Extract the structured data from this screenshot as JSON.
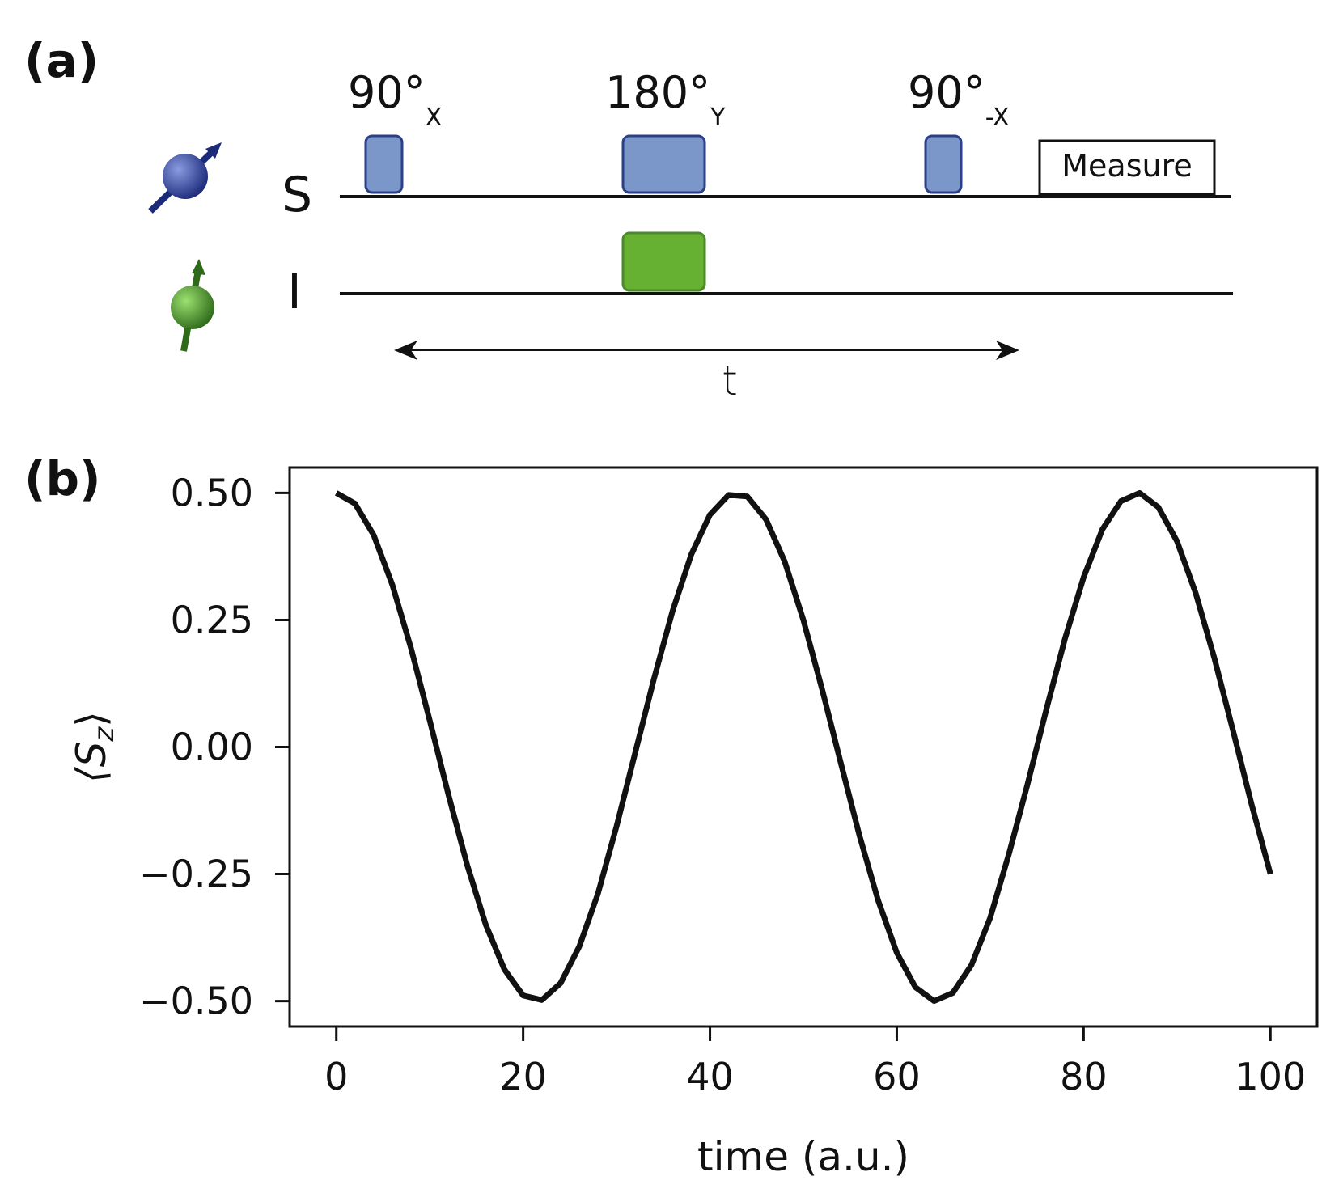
{
  "panel_a": {
    "label": "(a)",
    "channels": [
      {
        "label": "S"
      },
      {
        "label": "I"
      }
    ],
    "pulses": [
      {
        "text": "90°",
        "subscript": "X"
      },
      {
        "text": "180°",
        "subscript": "Y"
      },
      {
        "text": "90°",
        "subscript": "-X"
      }
    ],
    "measure": "Measure",
    "delay": "t"
  },
  "panel_b": {
    "label": "(b)"
  },
  "chart_data": {
    "type": "line",
    "xlabel": "time (a.u.)",
    "ylabel": [
      "⟨S",
      "z",
      "⟩"
    ],
    "xlim": [
      -5,
      105
    ],
    "ylim": [
      -0.55,
      0.55
    ],
    "xticks": [
      0,
      20,
      40,
      60,
      80,
      100
    ],
    "yticks": [
      {
        "value": 0.5,
        "label": "0.50"
      },
      {
        "value": 0.25,
        "label": "0.25"
      },
      {
        "value": 0,
        "label": "0.00"
      },
      {
        "value": -0.25,
        "label": "−0.25"
      },
      {
        "value": -0.5,
        "label": "−0.50"
      }
    ],
    "x": [
      0,
      2,
      4,
      6,
      8,
      10,
      12,
      14,
      16,
      18,
      20,
      22,
      24,
      26,
      28,
      30,
      32,
      34,
      36,
      38,
      40,
      42,
      44,
      46,
      48,
      50,
      52,
      54,
      56,
      58,
      60,
      62,
      64,
      66,
      68,
      70,
      72,
      74,
      76,
      78,
      80,
      82,
      84,
      86,
      88,
      90,
      92,
      94,
      96,
      98,
      100
    ],
    "series": [
      {
        "color": "#111111",
        "values": [
          0.5,
          0.479,
          0.417,
          0.319,
          0.194,
          0.052,
          -0.094,
          -0.232,
          -0.35,
          -0.438,
          -0.489,
          -0.498,
          -0.465,
          -0.393,
          -0.289,
          -0.156,
          -0.011,
          0.134,
          0.268,
          0.379,
          0.457,
          0.496,
          0.493,
          0.448,
          0.365,
          0.25,
          0.114,
          -0.031,
          -0.174,
          -0.302,
          -0.405,
          -0.473,
          -0.5,
          -0.484,
          -0.429,
          -0.336,
          -0.211,
          -0.073,
          0.073,
          0.213,
          0.334,
          0.428,
          0.484,
          0.5,
          0.472,
          0.405,
          0.303,
          0.175,
          0.032,
          -0.114,
          -0.25
        ]
      }
    ]
  }
}
